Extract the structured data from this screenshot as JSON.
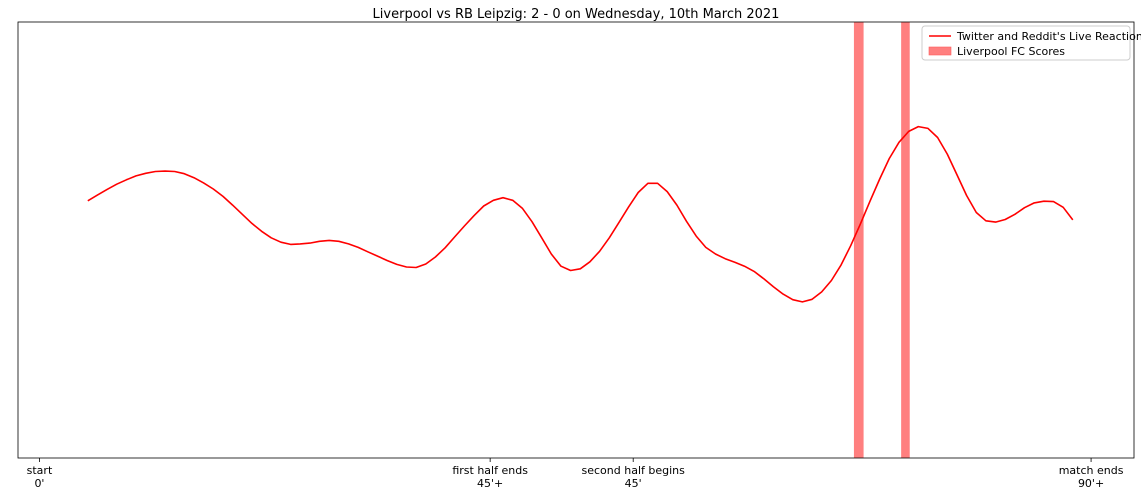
{
  "chart_data": {
    "type": "line",
    "title": "Liverpool vs RB Leipzig: 2 - 0 on Wednesday, 10th March 2021",
    "xlim": [
      -2,
      102
    ],
    "ylim": [
      0,
      1
    ],
    "grid": false,
    "legend_position": "top-right",
    "yticks_visible": false,
    "xticks": [
      {
        "pos": 0,
        "line1": "start",
        "line2": "0'"
      },
      {
        "pos": 42,
        "line1": "first half ends",
        "line2": "45'+"
      },
      {
        "pos": 55.33,
        "line1": "second half begins",
        "line2": "45'"
      },
      {
        "pos": 98,
        "line1": "match ends",
        "line2": "90'+"
      }
    ],
    "series": [
      {
        "name": "Twitter and Reddit's Live Reaction",
        "color": "#ff0000",
        "points": [
          [
            4.5,
            0.59
          ],
          [
            5.4,
            0.603
          ],
          [
            6.3,
            0.616
          ],
          [
            7.2,
            0.628
          ],
          [
            8.1,
            0.638
          ],
          [
            9,
            0.647
          ],
          [
            9.9,
            0.653
          ],
          [
            10.8,
            0.657
          ],
          [
            11.7,
            0.658
          ],
          [
            12.6,
            0.657
          ],
          [
            13.5,
            0.652
          ],
          [
            14.4,
            0.643
          ],
          [
            15.3,
            0.631
          ],
          [
            16.2,
            0.617
          ],
          [
            17.1,
            0.6
          ],
          [
            18,
            0.58
          ],
          [
            18.9,
            0.559
          ],
          [
            19.8,
            0.538
          ],
          [
            20.7,
            0.52
          ],
          [
            21.6,
            0.505
          ],
          [
            22.5,
            0.495
          ],
          [
            23.4,
            0.49
          ],
          [
            24.3,
            0.491
          ],
          [
            25.2,
            0.493
          ],
          [
            26.1,
            0.497
          ],
          [
            27,
            0.499
          ],
          [
            27.9,
            0.497
          ],
          [
            28.8,
            0.491
          ],
          [
            29.7,
            0.483
          ],
          [
            30.6,
            0.473
          ],
          [
            31.5,
            0.463
          ],
          [
            32.4,
            0.453
          ],
          [
            33.3,
            0.444
          ],
          [
            34.2,
            0.438
          ],
          [
            35.1,
            0.437
          ],
          [
            36,
            0.445
          ],
          [
            36.9,
            0.461
          ],
          [
            37.8,
            0.482
          ],
          [
            38.7,
            0.507
          ],
          [
            39.6,
            0.532
          ],
          [
            40.5,
            0.556
          ],
          [
            41.4,
            0.578
          ],
          [
            42.3,
            0.591
          ],
          [
            43.2,
            0.597
          ],
          [
            44.1,
            0.591
          ],
          [
            45,
            0.573
          ],
          [
            45.9,
            0.542
          ],
          [
            46.8,
            0.505
          ],
          [
            47.7,
            0.468
          ],
          [
            48.6,
            0.44
          ],
          [
            49.5,
            0.43
          ],
          [
            50.4,
            0.434
          ],
          [
            51.3,
            0.45
          ],
          [
            52.2,
            0.474
          ],
          [
            53.1,
            0.505
          ],
          [
            54,
            0.54
          ],
          [
            54.9,
            0.576
          ],
          [
            55.8,
            0.609
          ],
          [
            56.7,
            0.63
          ],
          [
            57.6,
            0.63
          ],
          [
            58.5,
            0.611
          ],
          [
            59.4,
            0.58
          ],
          [
            60.3,
            0.543
          ],
          [
            61.2,
            0.509
          ],
          [
            62.1,
            0.483
          ],
          [
            63,
            0.468
          ],
          [
            63.9,
            0.457
          ],
          [
            64.8,
            0.449
          ],
          [
            65.7,
            0.44
          ],
          [
            66.6,
            0.428
          ],
          [
            67.5,
            0.411
          ],
          [
            68.4,
            0.393
          ],
          [
            69.3,
            0.376
          ],
          [
            70.2,
            0.363
          ],
          [
            71.1,
            0.358
          ],
          [
            72,
            0.364
          ],
          [
            72.9,
            0.381
          ],
          [
            73.8,
            0.407
          ],
          [
            74.7,
            0.443
          ],
          [
            75.6,
            0.487
          ],
          [
            76.5,
            0.537
          ],
          [
            77.4,
            0.589
          ],
          [
            78.3,
            0.64
          ],
          [
            79.2,
            0.687
          ],
          [
            80.1,
            0.724
          ],
          [
            81,
            0.749
          ],
          [
            81.9,
            0.76
          ],
          [
            82.8,
            0.756
          ],
          [
            83.7,
            0.735
          ],
          [
            84.6,
            0.697
          ],
          [
            85.5,
            0.65
          ],
          [
            86.4,
            0.602
          ],
          [
            87.3,
            0.563
          ],
          [
            88.2,
            0.544
          ],
          [
            89.1,
            0.541
          ],
          [
            90,
            0.547
          ],
          [
            90.9,
            0.559
          ],
          [
            91.8,
            0.574
          ],
          [
            92.7,
            0.585
          ],
          [
            93.6,
            0.589
          ],
          [
            94.5,
            0.588
          ],
          [
            95.4,
            0.575
          ],
          [
            96.3,
            0.546
          ]
        ]
      }
    ],
    "bars": {
      "name": "Liverpool FC Scores",
      "color": "#ff7f7f",
      "ranges": [
        [
          75.9,
          76.8
        ],
        [
          80.3,
          81.1
        ]
      ]
    }
  }
}
